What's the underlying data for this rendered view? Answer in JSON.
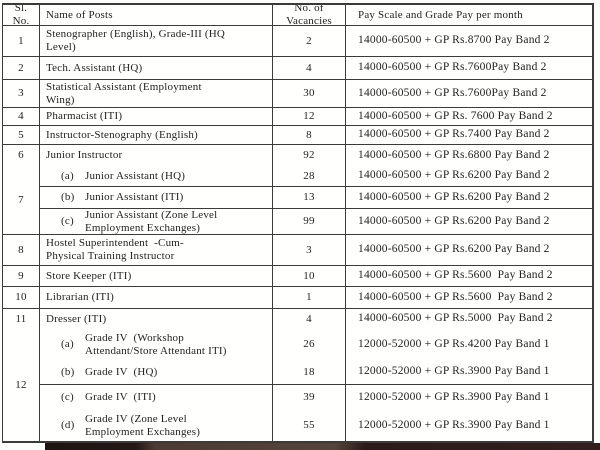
{
  "colors": {
    "border": "#3b3b3b",
    "text": "#222222",
    "bottom_bar": "#2a1918"
  },
  "table": {
    "headers": {
      "sl": "Sl.\nNo.",
      "name": "Name of Posts",
      "vac": "No. of\nVacancies",
      "pay": "Pay Scale and Grade Pay per month"
    },
    "rows": [
      {
        "sl": "1",
        "name": "Stenographer (English), Grade-III (HQ\nLevel)",
        "vac": "2",
        "pay": "14000-60500 + GP Rs.8700 Pay Band 2"
      },
      {
        "sl": "2",
        "name": "Tech. Assistant (HQ)",
        "vac": "4",
        "pay": "14000-60500 + GP Rs.7600Pay Band 2"
      },
      {
        "sl": "3",
        "name": "Statistical Assistant (Employment\nWing)",
        "vac": "30",
        "pay": "14000-60500 + GP Rs.7600Pay Band 2"
      },
      {
        "sl": "4",
        "name": "Pharmacist (ITI)",
        "vac": "12",
        "pay": "14000-60500 + GP Rs. 7600 Pay Band 2"
      },
      {
        "sl": "5",
        "name": "Instructor-Stenography (English)",
        "vac": "8",
        "pay": "14000-60500 + GP Rs.7400 Pay Band 2"
      },
      {
        "sl": "6",
        "name": "Junior Instructor",
        "vac": "92",
        "pay": "14000-60500 + GP Rs.6800 Pay Band 2"
      },
      {
        "marker": "(a)",
        "text": "Junior Assistant (HQ)",
        "vac": "28",
        "pay": "14000-60500 + GP Rs.6200 Pay Band 2"
      },
      {
        "sl": "7",
        "marker": "(b)",
        "text": "Junior Assistant (ITI)",
        "vac": "13",
        "pay": "14000-60500 + GP Rs.6200 Pay Band 2"
      },
      {
        "marker": "(c)",
        "text": "Junior Assistant (Zone Level\nEmployment Exchanges)",
        "vac": "99",
        "pay": "14000-60500 + GP Rs.6200 Pay Band 2"
      },
      {
        "sl": "8",
        "name": "Hostel Superintendent  -Cum-\nPhysical Training Instructor",
        "vac": "3",
        "pay": "14000-60500 + GP Rs.6200 Pay Band 2"
      },
      {
        "sl": "9",
        "name": "Store Keeper (ITI)",
        "vac": "10",
        "pay": "14000-60500 + GP Rs.5600  Pay Band 2"
      },
      {
        "sl": "10",
        "name": "Librarian (ITI)",
        "vac": "1",
        "pay": "14000-60500 + GP Rs.5600  Pay Band 2"
      },
      {
        "sl": "11",
        "name": "Dresser (ITI)",
        "vac": "4",
        "pay": "14000-60500 + GP Rs.5000  Pay Band 2"
      },
      {
        "marker": "(a)",
        "text": "Grade IV  (Workshop\nAttendant/Store Attendant ITI)",
        "vac": "26",
        "pay": "12000-52000 + GP Rs.4200 Pay Band 1"
      },
      {
        "sl": "12",
        "marker": "(b)",
        "text": "Grade IV  (HQ)",
        "vac": "18",
        "pay": "12000-52000 + GP Rs.3900 Pay Band 1"
      },
      {
        "marker": "(c)",
        "text": "Grade IV  (ITI)",
        "vac": "39",
        "pay": "12000-52000 + GP Rs.3900 Pay Band 1"
      },
      {
        "marker": "(d)",
        "text": "Grade IV (Zone Level\nEmployment Exchanges)",
        "vac": "55",
        "pay": "12000-52000 + GP Rs.3900 Pay Band 1"
      }
    ]
  }
}
